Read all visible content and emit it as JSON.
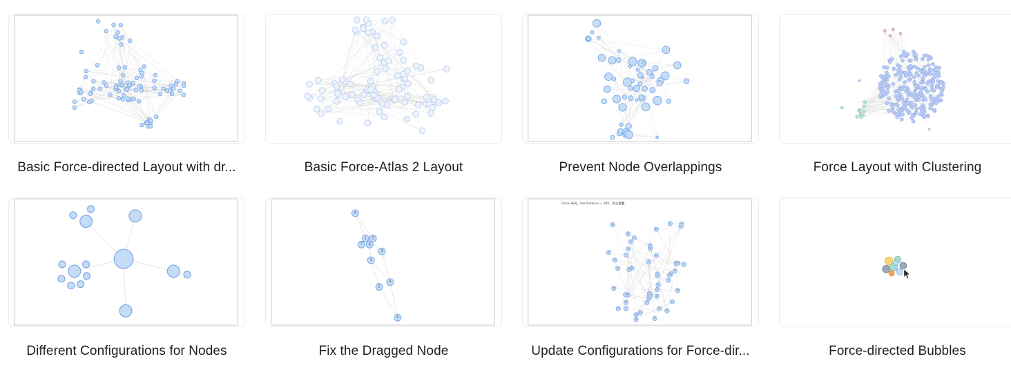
{
  "examples": [
    {
      "title": "Basic Force-directed Layout with dr...",
      "graph": "force-basic"
    },
    {
      "title": "Basic Force-Atlas 2 Layout",
      "graph": "force-atlas"
    },
    {
      "title": "Prevent Node Overlappings",
      "graph": "prevent-overlap"
    },
    {
      "title": "Force Layout with Clustering",
      "graph": "clustering"
    },
    {
      "title": "Different Configurations for Nodes",
      "graph": "node-configs"
    },
    {
      "title": "Fix the Dragged Node",
      "graph": "fix-dragged"
    },
    {
      "title": "Update Configurations for Force-dir...",
      "graph": "update-config",
      "note": "Force 布局，linkDistance = 100，防止重叠"
    },
    {
      "title": "Force-directed Bubbles",
      "graph": "bubbles"
    }
  ],
  "colors": {
    "node_fill": "#c5dcf7",
    "node_stroke": "#7aa7e6",
    "edge": "#c8c8c8",
    "cluster_pink": "#e7b9c8",
    "cluster_teal": "#a8dcd2",
    "bubble_yellow": "#f7d774",
    "bubble_orange": "#f6a04d",
    "bubble_grey": "#9fa7b7"
  },
  "icons": {
    "cursor": "mouse-pointer-icon"
  }
}
